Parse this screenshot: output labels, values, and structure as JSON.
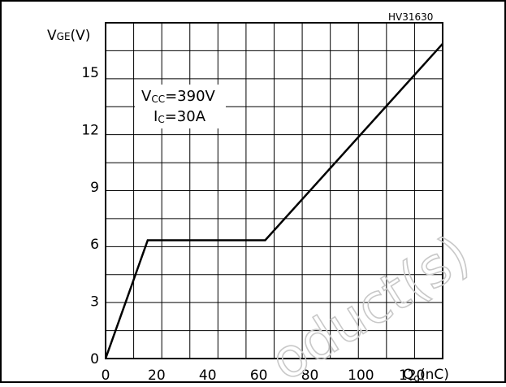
{
  "figure_ref": "HV31630",
  "y_label": {
    "main": "V",
    "sub": "GE",
    "unit": "(V)"
  },
  "x_label": {
    "main": "Q",
    "sub": "g",
    "unit": "(nC)"
  },
  "annotation": {
    "line1": {
      "main": "V",
      "sub": "CC",
      "rest": "=390V"
    },
    "line2": {
      "main": "I",
      "sub": "C",
      "rest": "=30A"
    }
  },
  "watermark": "oduct(s)",
  "chart_data": {
    "type": "line",
    "xlabel": "Qg(nC)",
    "ylabel": "VGE(V)",
    "xlim": [
      0,
      132
    ],
    "ylim": [
      0,
      17.6
    ],
    "xticks": [
      0,
      20,
      40,
      60,
      80,
      100,
      120
    ],
    "xtick_labels": [
      "0",
      "20",
      "40",
      "60",
      "80",
      "100",
      "120"
    ],
    "yticks": [
      0,
      3,
      6,
      9,
      12,
      15
    ],
    "ytick_labels": [
      "0",
      "3",
      "6",
      "9",
      "12",
      "15"
    ],
    "grid": true,
    "series": [
      {
        "x": [
          0,
          16.5,
          62.5,
          132
        ],
        "y": [
          0,
          6.2,
          6.2,
          16.5
        ]
      }
    ]
  }
}
